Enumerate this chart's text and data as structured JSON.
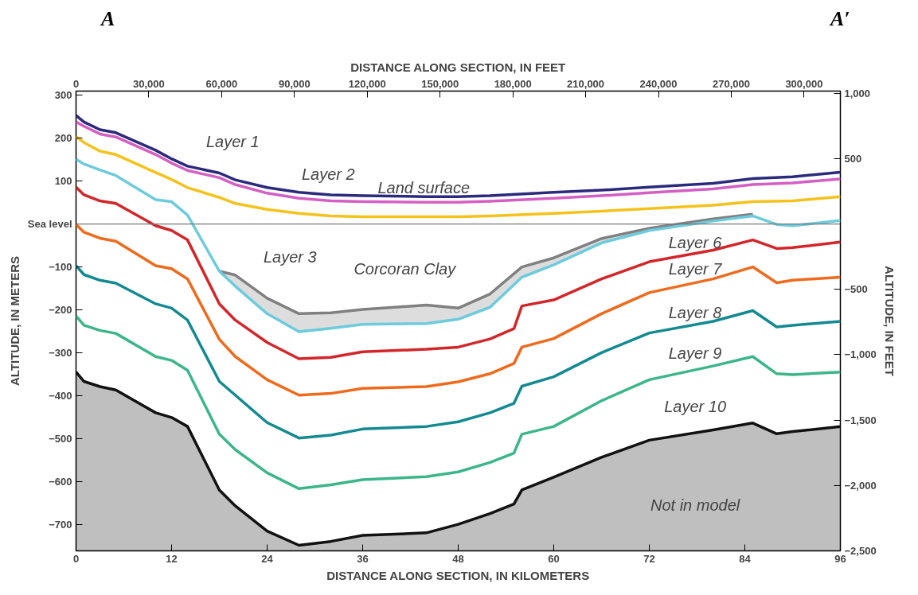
{
  "chart_data": {
    "type": "line",
    "xlabel": "DISTANCE ALONG SECTION, IN KILOMETERS",
    "x2label": "DISTANCE ALONG SECTION, IN FEET",
    "ylabel": "ALTITUDE, IN METERS",
    "y2label": "ALTITUDE, IN FEET",
    "xlim": [
      0,
      96
    ],
    "xticks": [
      0,
      12,
      24,
      36,
      48,
      60,
      72,
      84,
      96
    ],
    "x2lim": [
      0,
      314961
    ],
    "x2ticks": [
      {
        "value": 0,
        "label": "0"
      },
      {
        "value": 30000,
        "label": "30,000"
      },
      {
        "value": 60000,
        "label": "60,000"
      },
      {
        "value": 90000,
        "label": "90,000"
      },
      {
        "value": 120000,
        "label": "120,000"
      },
      {
        "value": 150000,
        "label": "150,000"
      },
      {
        "value": 180000,
        "label": "180,000"
      },
      {
        "value": 210000,
        "label": "210,000"
      },
      {
        "value": 240000,
        "label": "240,000"
      },
      {
        "value": 270000,
        "label": "270,000"
      },
      {
        "value": 300000,
        "label": "300,000"
      }
    ],
    "ylim": [
      -762,
      310
    ],
    "yticks": [
      300,
      200,
      100,
      {
        "value": 0,
        "label": "Sea level"
      },
      {
        "value": -100,
        "label": "−100"
      },
      {
        "value": -200,
        "label": "−200"
      },
      {
        "value": -300,
        "label": "−300"
      },
      {
        "value": -400,
        "label": "−400"
      },
      {
        "value": -500,
        "label": "−500"
      },
      {
        "value": -600,
        "label": "−600"
      },
      {
        "value": -700,
        "label": "−700"
      }
    ],
    "y2lim": [
      -2500,
      1017
    ],
    "y2ticks": [
      {
        "value": 1000,
        "label": "1,000"
      },
      500,
      {
        "value": -500,
        "label": "−500"
      },
      {
        "value": -1000,
        "label": "−1,000"
      },
      {
        "value": -1500,
        "label": "−1,500"
      },
      {
        "value": -2000,
        "label": "−2,000"
      },
      {
        "value": -2500,
        "label": "−2,500"
      }
    ],
    "grid": false,
    "ref_lines": [
      {
        "axis": "y",
        "value": 0,
        "color": "#777777"
      }
    ],
    "series": [
      {
        "color": "#2b2a7c",
        "x": [
          0,
          1,
          3,
          5,
          10,
          12,
          14,
          18,
          20,
          24,
          28,
          32,
          36,
          44,
          48,
          52,
          60,
          66,
          72,
          80,
          85,
          90,
          96
        ],
        "values": [
          253,
          238,
          220,
          213,
          172,
          152,
          135,
          119,
          103,
          85,
          74,
          68,
          66,
          64,
          64,
          66,
          74,
          79,
          86,
          95,
          106,
          110,
          121
        ]
      },
      {
        "color": "#d45fc4",
        "x": [
          0,
          1,
          3,
          5,
          10,
          12,
          14,
          18,
          20,
          24,
          28,
          32,
          36,
          44,
          48,
          52,
          60,
          66,
          72,
          80,
          85,
          90,
          96
        ],
        "values": [
          238,
          228,
          210,
          203,
          162,
          142,
          125,
          108,
          92,
          72,
          60,
          54,
          52,
          51,
          51,
          53,
          60,
          66,
          73,
          82,
          92,
          96,
          105
        ]
      },
      {
        "color": "#f5c21b",
        "x": [
          0,
          1,
          3,
          5,
          10,
          12,
          14,
          18,
          20,
          24,
          28,
          32,
          36,
          44,
          48,
          52,
          60,
          66,
          72,
          80,
          85,
          90,
          96
        ],
        "values": [
          204,
          190,
          170,
          162,
          120,
          104,
          85,
          62,
          48,
          34,
          25,
          19,
          17,
          17,
          17,
          19,
          25,
          30,
          36,
          44,
          52,
          54,
          64
        ]
      },
      {
        "color": "#6ccbdc",
        "x": [
          0,
          1,
          3,
          5,
          10,
          12,
          14,
          18,
          20,
          24,
          28,
          32,
          36,
          44,
          48,
          52,
          56,
          60,
          66,
          72,
          80,
          85,
          88,
          90,
          96
        ],
        "values": [
          151,
          140,
          126,
          113,
          57,
          52,
          21,
          -110,
          -145,
          -209,
          -251,
          -243,
          -234,
          -232,
          -222,
          -194,
          -124,
          -95,
          -44,
          -15,
          7,
          19,
          -1,
          -4,
          8
        ]
      },
      {
        "color": "#d3262a",
        "x": [
          0,
          1,
          3,
          5,
          10,
          12,
          14,
          18,
          20,
          24,
          28,
          32,
          36,
          44,
          48,
          52,
          55,
          56,
          60,
          66,
          72,
          80,
          85,
          88,
          90,
          96
        ],
        "values": [
          86,
          68,
          54,
          48,
          -4,
          -15,
          -37,
          -186,
          -224,
          -276,
          -314,
          -311,
          -298,
          -292,
          -287,
          -268,
          -244,
          -191,
          -177,
          -128,
          -88,
          -61,
          -37,
          -57,
          -55,
          -42
        ]
      },
      {
        "color": "#f06a1c",
        "x": [
          0,
          1,
          3,
          5,
          10,
          12,
          14,
          18,
          20,
          24,
          28,
          32,
          36,
          44,
          48,
          52,
          55,
          56,
          60,
          66,
          72,
          80,
          85,
          88,
          90,
          96
        ],
        "values": [
          -1,
          -19,
          -33,
          -40,
          -97,
          -104,
          -128,
          -269,
          -309,
          -363,
          -399,
          -395,
          -383,
          -379,
          -368,
          -349,
          -325,
          -287,
          -267,
          -209,
          -160,
          -128,
          -100,
          -137,
          -131,
          -124
        ]
      },
      {
        "color": "#138a91",
        "x": [
          0,
          1,
          3,
          5,
          10,
          12,
          14,
          18,
          20,
          24,
          28,
          32,
          36,
          44,
          48,
          52,
          55,
          56,
          60,
          66,
          72,
          80,
          85,
          88,
          90,
          96
        ],
        "values": [
          -97,
          -118,
          -131,
          -138,
          -186,
          -196,
          -224,
          -367,
          -399,
          -463,
          -499,
          -492,
          -478,
          -472,
          -461,
          -440,
          -418,
          -378,
          -356,
          -300,
          -254,
          -227,
          -202,
          -240,
          -236,
          -227
        ]
      },
      {
        "color": "#3bb68a",
        "x": [
          0,
          1,
          3,
          5,
          10,
          12,
          14,
          18,
          20,
          24,
          28,
          32,
          36,
          44,
          48,
          52,
          55,
          56,
          60,
          66,
          72,
          80,
          85,
          88,
          90,
          96
        ],
        "values": [
          -214,
          -236,
          -248,
          -255,
          -309,
          -318,
          -341,
          -490,
          -526,
          -580,
          -617,
          -608,
          -596,
          -589,
          -578,
          -556,
          -534,
          -490,
          -472,
          -412,
          -363,
          -331,
          -309,
          -349,
          -351,
          -345
        ]
      },
      {
        "color": "#111111",
        "x": [
          0,
          1,
          3,
          5,
          10,
          12,
          14,
          18,
          20,
          24,
          28,
          32,
          36,
          44,
          48,
          52,
          55,
          56,
          60,
          66,
          72,
          80,
          85,
          88,
          90,
          96
        ],
        "values": [
          -345,
          -367,
          -379,
          -387,
          -440,
          -451,
          -472,
          -620,
          -657,
          -716,
          -749,
          -740,
          -726,
          -720,
          -700,
          -675,
          -653,
          -620,
          -590,
          -544,
          -504,
          -480,
          -464,
          -489,
          -484,
          -472
        ],
        "upper": [
          -345,
          -367,
          -379,
          -387,
          -440,
          -451,
          -472,
          -620,
          -657,
          -716,
          -749,
          -740,
          -726,
          -720,
          -700,
          -675,
          -653,
          -620,
          -590,
          -544,
          -504,
          -480,
          -464,
          -489,
          -484,
          -472
        ],
        "lower": [
          -762,
          -762,
          -762,
          -762,
          -762,
          -762,
          -762,
          -762,
          -762,
          -762,
          -762,
          -762,
          -762,
          -762,
          -762,
          -762,
          -762,
          -762,
          -762,
          -762,
          -762,
          -762,
          -762,
          -762,
          -762,
          -762
        ]
      },
      {
        "color": "#808080",
        "x": [
          18,
          20,
          24,
          28,
          32,
          36,
          44,
          48,
          52,
          56,
          60,
          66,
          72,
          80,
          85
        ],
        "values": [
          -110,
          -119,
          -173,
          -209,
          -207,
          -199,
          -189,
          -196,
          -163,
          -100,
          -79,
          -34,
          -10,
          12,
          23
        ],
        "upper": [
          -110,
          -119,
          -173,
          -209,
          -207,
          -199,
          -189,
          -196,
          -163,
          -100,
          -79,
          -34,
          -10,
          12,
          23
        ],
        "lower": [
          -110,
          -145,
          -209,
          -251,
          -243,
          -234,
          -232,
          -222,
          -194,
          -124,
          -95,
          -44,
          -15,
          7,
          19
        ]
      }
    ],
    "annotations": [
      "A",
      "A′",
      "Layer 1",
      "Layer 2",
      "Land surface",
      "Layer 3",
      "Corcoran Clay",
      "Layer 6",
      "Layer 7",
      "Layer 8",
      "Layer 9",
      "Layer 10",
      "Not in model"
    ]
  }
}
